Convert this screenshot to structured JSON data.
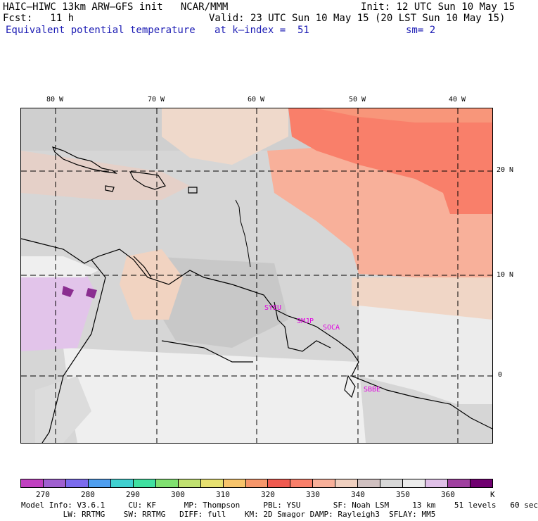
{
  "header": {
    "line1_left": "HAIC–HIWC 13km ARW–GFS init   NCAR/MMM",
    "line1_right": "Init: 12 UTC Sun 10 May 15",
    "line2_left": "Fcst:   11 h",
    "line2_right": "Valid: 23 UTC Sun 10 May 15 (20 LST Sun 10 May 15)",
    "field_title": "Equivalent potential temperature",
    "k_index": "at k–index =  51",
    "smoothing": "sm= 2"
  },
  "map": {
    "lon_labels": [
      "80 W",
      "70 W",
      "60 W",
      "50 W",
      "40 W"
    ],
    "lat_labels": [
      "20 N",
      "10 N",
      "0"
    ],
    "station_labels": [
      "SYEU",
      "SMJP",
      "SOCA",
      "SBBE"
    ]
  },
  "colorbar": {
    "colors": [
      "#c040c0",
      "#a060d0",
      "#7b6bee",
      "#4f9ff0",
      "#3fd0d0",
      "#40e0a0",
      "#80e070",
      "#c0e070",
      "#e6e070",
      "#f7c46b",
      "#f6966a",
      "#f05a50",
      "#f97f6a",
      "#f8b09a",
      "#f0d0c0",
      "#d0c0c0",
      "#d8d8d8",
      "#ececec",
      "#e0c0e8",
      "#a040a0",
      "#700070"
    ],
    "labels": [
      "270",
      "280",
      "290",
      "300",
      "310",
      "320",
      "330",
      "340",
      "350",
      "360",
      "K"
    ]
  },
  "footer": {
    "line1": "Model Info: V3.6.1     CU: KF      MP: Thompson     PBL: YSU       SF: Noah LSM     13 km    51 levels   60 sec",
    "line2": "         LW: RRTMG    SW: RRTMG   DIFF: full    KM: 2D Smagor DAMP: Rayleigh3  SFLAY: MM5"
  }
}
